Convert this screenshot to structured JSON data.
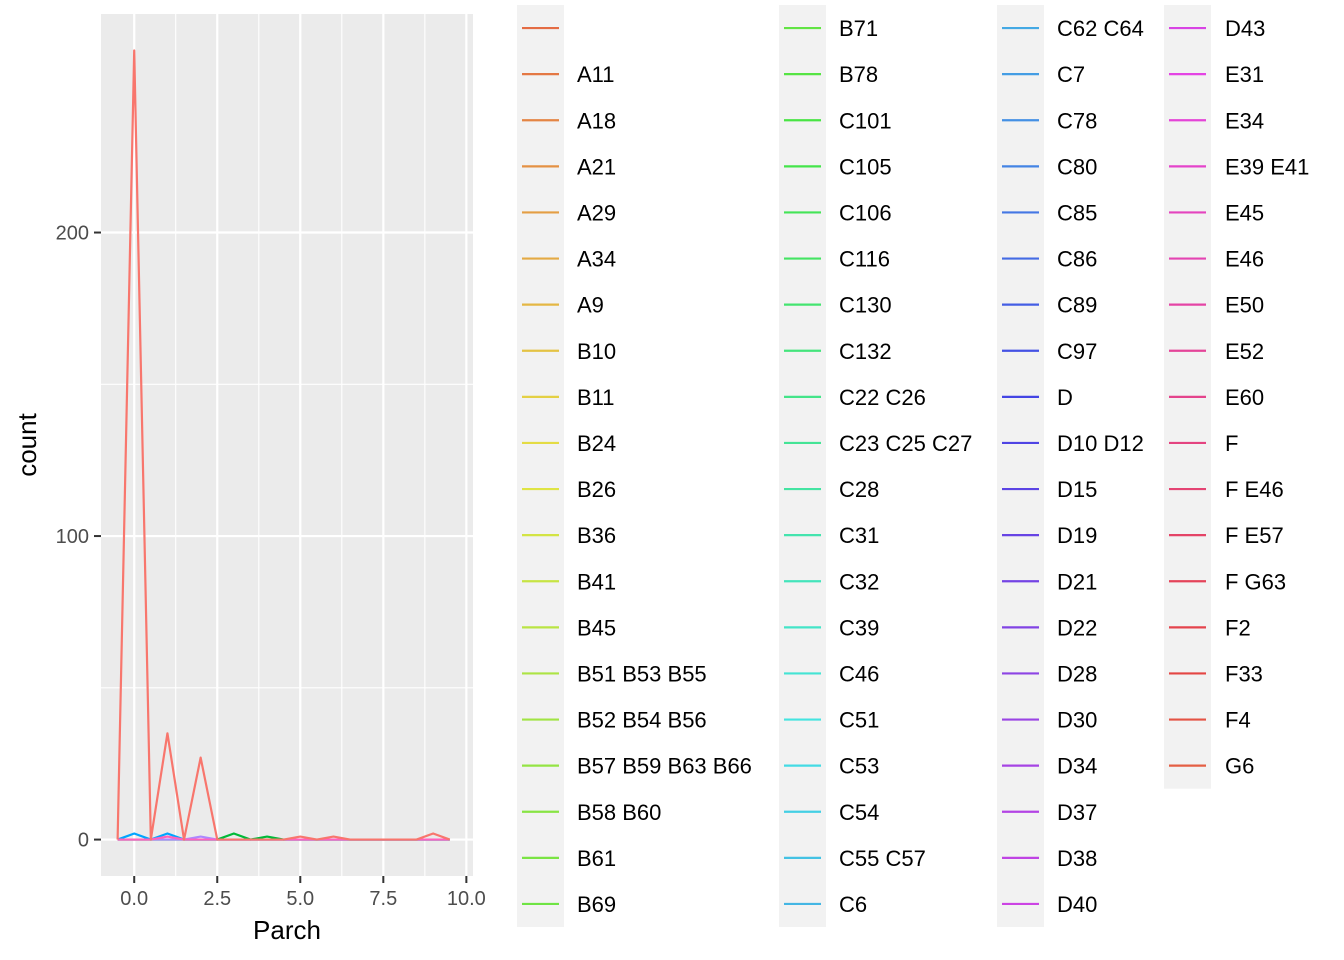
{
  "chart_data": {
    "type": "line",
    "xlabel": "Parch",
    "ylabel": "count",
    "xlim": [
      -1.0,
      10.2
    ],
    "ylim": [
      -12,
      272
    ],
    "x_ticks": [
      0,
      2.5,
      5,
      7.5,
      10
    ],
    "x_tick_labels": [
      "0.0",
      "2.5",
      "5.0",
      "7.5",
      "10.0"
    ],
    "y_ticks": [
      0,
      100,
      200
    ],
    "y_tick_labels": [
      "0",
      "100",
      "200"
    ],
    "grid": true,
    "legend_position": "right",
    "legend_entries": [
      "",
      "A11",
      "A18",
      "A21",
      "A29",
      "A34",
      "A9",
      "B10",
      "B11",
      "B24",
      "B26",
      "B36",
      "B41",
      "B45",
      "B51 B53 B55",
      "B52 B54 B56",
      "B57 B59 B63 B66",
      "B58 B60",
      "B61",
      "B69",
      "B71",
      "B78",
      "C101",
      "C105",
      "C106",
      "C116",
      "C130",
      "C132",
      "C22 C26",
      "C23 C25 C27",
      "C28",
      "C31",
      "C32",
      "C39",
      "C46",
      "C51",
      "C53",
      "C54",
      "C55 C57",
      "C6",
      "C62 C64",
      "C7",
      "C78",
      "C80",
      "C85",
      "C86",
      "C89",
      "C97",
      "D",
      "D10 D12",
      "D15",
      "D19",
      "D21",
      "D22",
      "D28",
      "D30",
      "D34",
      "D37",
      "D38",
      "D40",
      "D43",
      "E31",
      "E34",
      "E39 E41",
      "E45",
      "E46",
      "E50",
      "E52",
      "E60",
      "F",
      "F E46",
      "F E57",
      "F G63",
      "F2",
      "F33",
      "F4",
      "G6"
    ],
    "series": [
      {
        "name": "",
        "color": "#F8766D",
        "x": [
          -0.5,
          0,
          0.5,
          1,
          1.5,
          2,
          2.5,
          3,
          3.5,
          4,
          4.5,
          5,
          5.5,
          6,
          6.5,
          7,
          7.5,
          8,
          8.5,
          9,
          9.5
        ],
        "y": [
          0,
          260,
          0,
          35,
          0,
          27,
          0,
          0,
          0,
          0,
          0,
          1,
          0,
          1,
          0,
          0,
          0,
          0,
          0,
          2,
          0
        ]
      },
      {
        "name": "C23 C25 C27",
        "color": "#00BA38",
        "x": [
          -0.5,
          2.5,
          3,
          3.5,
          4,
          4.5,
          9.5
        ],
        "y": [
          0,
          0,
          2,
          0,
          1,
          0,
          0
        ]
      },
      {
        "name": "D",
        "color": "#00A5FF",
        "x": [
          -0.5,
          0,
          0.5,
          1,
          1.5,
          9.5
        ],
        "y": [
          0,
          2,
          0,
          2,
          0,
          0
        ]
      },
      {
        "name": "D30",
        "color": "#AC88FF",
        "x": [
          -0.5,
          1.5,
          2,
          2.5,
          9.5
        ],
        "y": [
          0,
          0,
          1,
          0,
          0
        ]
      },
      {
        "name": "E46",
        "color": "#FF62BC",
        "x": [
          -0.5,
          0.5,
          1,
          1.5,
          9.5
        ],
        "y": [
          0,
          0,
          1,
          0,
          0
        ]
      }
    ]
  }
}
